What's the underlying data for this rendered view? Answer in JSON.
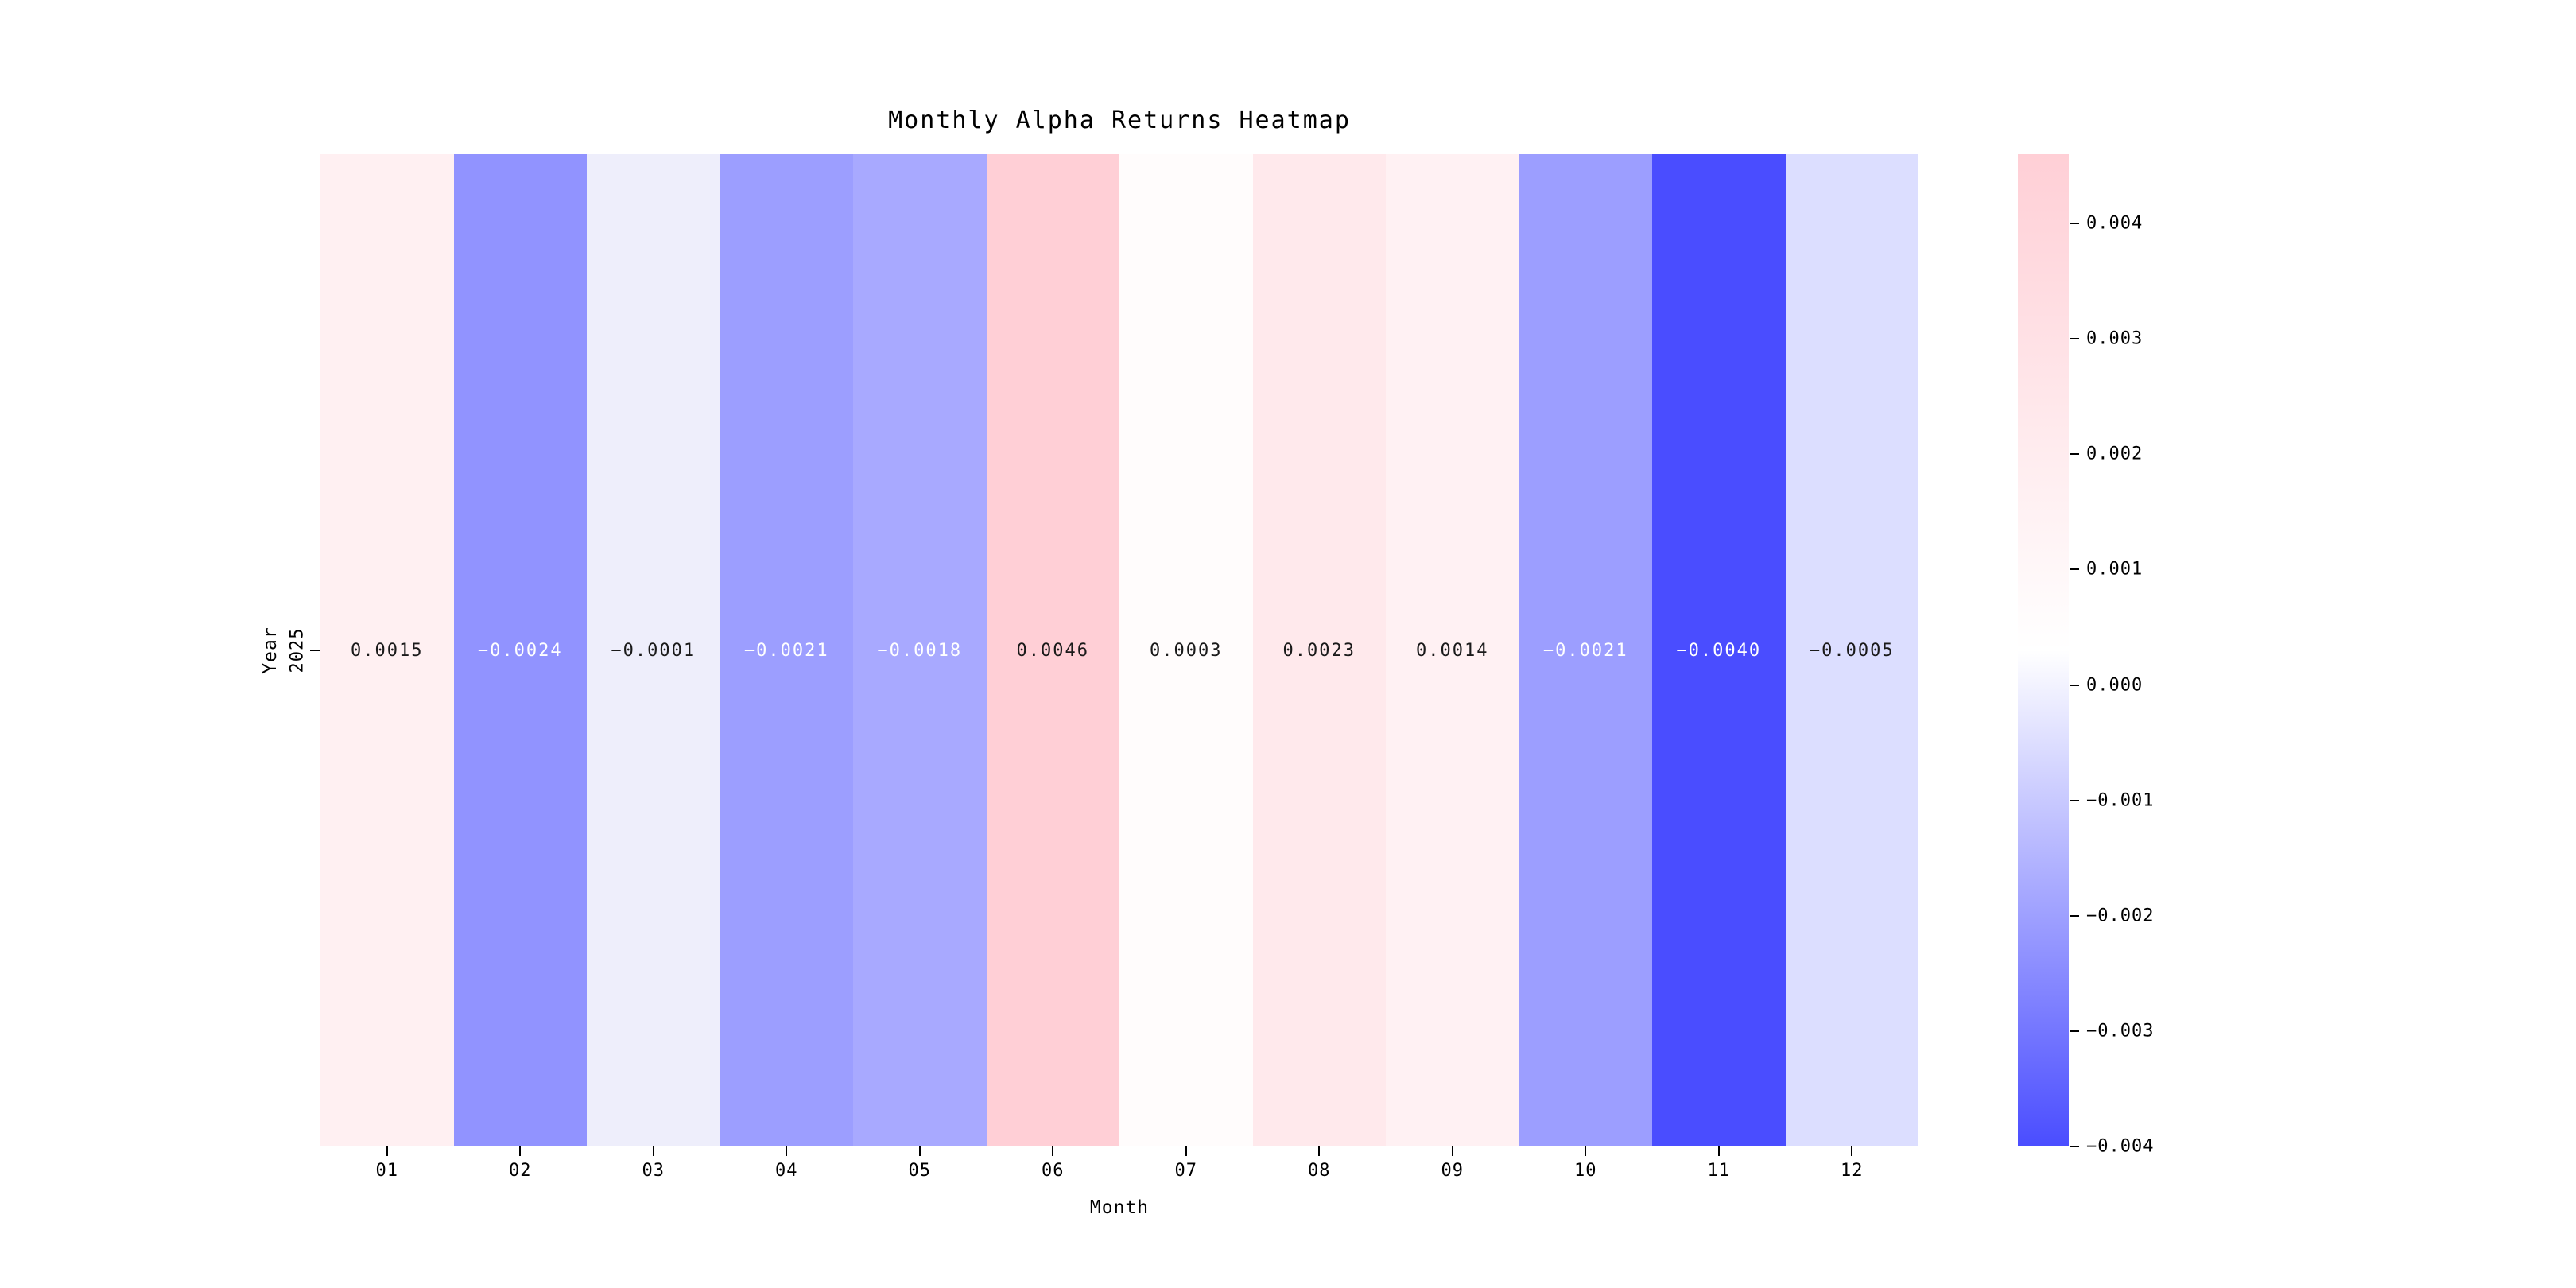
{
  "chart_data": {
    "type": "heatmap",
    "title": "Monthly Alpha Returns Heatmap",
    "xlabel": "Month",
    "ylabel": "Year",
    "categories": [
      "01",
      "02",
      "03",
      "04",
      "05",
      "06",
      "07",
      "08",
      "09",
      "10",
      "11",
      "12"
    ],
    "rows": [
      {
        "label": "2025",
        "values": [
          0.0015,
          -0.0024,
          -0.0001,
          -0.0021,
          -0.0018,
          0.0046,
          0.0003,
          0.0023,
          0.0014,
          -0.0021,
          -0.004,
          -0.0005
        ],
        "value_labels": [
          "0.0015",
          "−0.0024",
          "−0.0001",
          "−0.0021",
          "−0.0018",
          "0.0046",
          "0.0003",
          "0.0023",
          "0.0014",
          "−0.0021",
          "−0.0040",
          "−0.0005"
        ],
        "cell_colors": [
          "#FFF0F2",
          "#9193FF",
          "#EEEEFB",
          "#9C9EFF",
          "#A8A9FF",
          "#FFCFD6",
          "#FFFCFC",
          "#FFE9EC",
          "#FFF1F3",
          "#9C9EFF",
          "#4A4DFF",
          "#DCDEFF"
        ],
        "text_colors": [
          "#1A1A1A",
          "#FFFFFF",
          "#1A1A1A",
          "#FFFFFF",
          "#FFFFFF",
          "#1A1A1A",
          "#1A1A1A",
          "#1A1A1A",
          "#1A1A1A",
          "#FFFFFF",
          "#FFFFFF",
          "#1A1A1A"
        ]
      }
    ],
    "vmin": -0.004,
    "vmax": 0.0046,
    "grid": false,
    "legend_position": "colorbar-right",
    "colorbar": {
      "tick_values": [
        0.004,
        0.003,
        0.002,
        0.001,
        0.0,
        -0.001,
        -0.002,
        -0.003,
        -0.004
      ],
      "tick_labels": [
        "0.004",
        "0.003",
        "0.002",
        "0.001",
        "0.000",
        "−0.001",
        "−0.002",
        "−0.003",
        "−0.004"
      ],
      "min_color": "#4A4DFF",
      "mid_color": "#FFFFFF",
      "max_color": "#FFCFD6"
    }
  }
}
